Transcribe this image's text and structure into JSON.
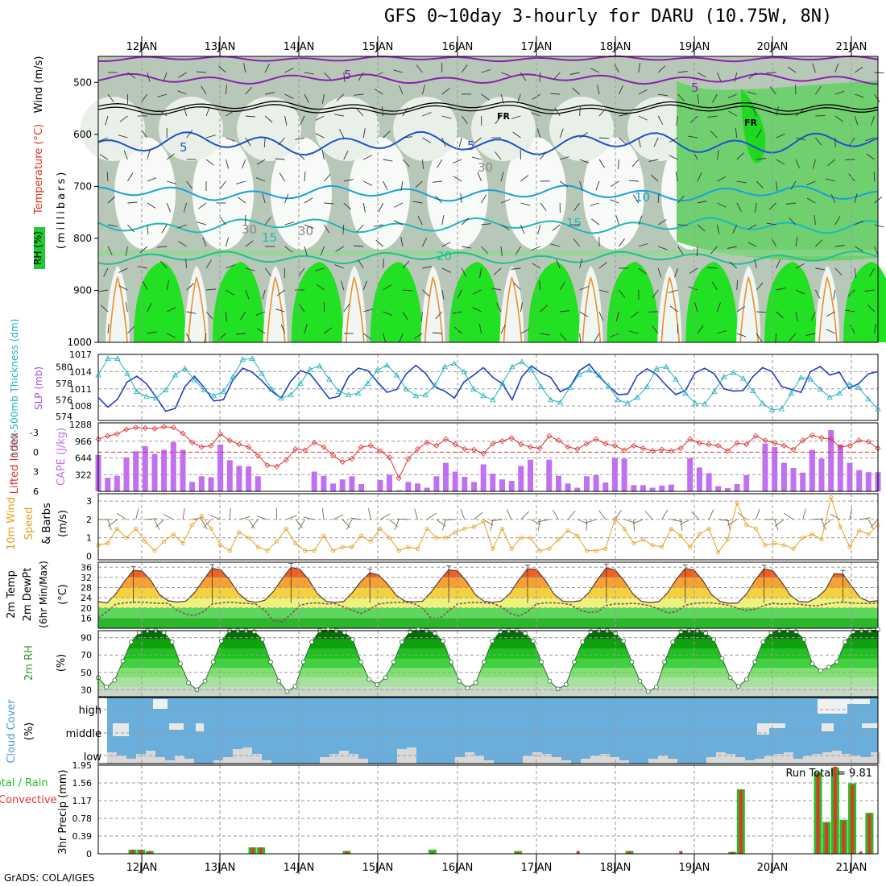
{
  "title": "GFS 0~10day 3-hourly for DARU (10.75W, 8N)",
  "footer": "GrADS: COLA/IGES",
  "dates": [
    "12JAN",
    "13JAN",
    "14JAN",
    "15JAN",
    "16JAN",
    "17JAN",
    "18JAN",
    "19JAN",
    "20JAN",
    "21JAN"
  ],
  "colors": {
    "rh": "#22c832",
    "temp": "#e03020",
    "wind": "#404040",
    "slp": "#2040c8",
    "thick": "#20b0c0",
    "cape": "#c070f0",
    "lifted": "#e03030",
    "wind10": "#e8a020",
    "rh2m": "#30a030",
    "cloud": "#6aaedc",
    "rain": "#20c020",
    "conv": "#e83030"
  },
  "chart_data": [
    {
      "panel": "upper_air",
      "type": "heatmap",
      "ylabel_rh": "RH (%)",
      "ylabel_temp": "Temperature (°C)",
      "ylabel_wind": "Wind (m/s)",
      "ylabel_units": "(millibars)",
      "y_ticks": [
        500,
        600,
        700,
        800,
        900,
        1000
      ],
      "ylim": [
        1000,
        450
      ],
      "contour_labels": [
        "5",
        "5",
        "FR",
        "FR",
        "5",
        "5",
        "10",
        "15",
        "15",
        "20",
        "30",
        "30",
        "30"
      ]
    },
    {
      "panel": "slp_thickness",
      "type": "line",
      "ylabel_left": "1000-500mb Thickness (dm)",
      "ylabel_right": "SLP (mb)",
      "slp_ticks": [
        1008,
        1011,
        1014,
        1017
      ],
      "thick_ticks": [
        574,
        576,
        578,
        580
      ],
      "series": [
        {
          "name": "SLP (mb)",
          "values": [
            1009.5,
            1007.8,
            1009.2,
            1012.2,
            1013.2,
            1011.9,
            1009.6,
            1007.1,
            1007.6,
            1011.4,
            1013.2,
            1011.2,
            1008.9,
            1009.1,
            1012.6,
            1014.6,
            1013.9,
            1012.4,
            1010.6,
            1009.4,
            1012.3,
            1014.2,
            1013.6,
            1011.5,
            1009.3,
            1009.7,
            1013.1,
            1014.6,
            1014.2,
            1012.2,
            1010.4,
            1010.9,
            1013.6,
            1015.1,
            1013.7,
            1011.3,
            1010.6,
            1009.4,
            1012.2,
            1013.4,
            1014.7,
            1013.0,
            1011.9,
            1009.1,
            1013.1,
            1015.0,
            1013.8,
            1013.0,
            1010.5,
            1011.3,
            1014.2,
            1015.3,
            1013.2,
            1011.5,
            1010.0,
            1010.1,
            1013.3,
            1014.5,
            1013.5,
            1011.6,
            1010.0,
            1010.7,
            1013.8,
            1014.6,
            1013.6,
            1011.0,
            1010.6,
            1010.7,
            1013.1,
            1014.7,
            1014.0,
            1011.4,
            1010.9,
            1010.4,
            1014.0,
            1014.9,
            1013.4,
            1013.9,
            1011.1,
            1011.9,
            1013.6,
            1014.0
          ]
        },
        {
          "name": "Thickness (dm)",
          "values": [
            579.0,
            581.0,
            581.0,
            579.2,
            577.0,
            576.4,
            576.2,
            577.2,
            579.0,
            579.8,
            578.4,
            577.2,
            576.5,
            577.0,
            578.8,
            580.9,
            581.0,
            579.2,
            577.3,
            576.2,
            576.6,
            578.0,
            579.7,
            580.1,
            578.5,
            577.0,
            576.6,
            576.8,
            578.0,
            579.6,
            580.2,
            579.0,
            577.3,
            576.5,
            576.6,
            577.8,
            580.0,
            580.4,
            579.4,
            577.3,
            576.5,
            576.0,
            578.0,
            580.0,
            580.6,
            579.6,
            577.6,
            576.0,
            575.7,
            577.5,
            579.1,
            579.6,
            579.0,
            577.7,
            576.0,
            575.6,
            576.3,
            577.6,
            579.8,
            580.0,
            578.5,
            576.8,
            575.6,
            575.5,
            577.0,
            578.8,
            579.3,
            578.6,
            577.1,
            575.6,
            574.8,
            574.9,
            576.8,
            578.7,
            578.5,
            577.3,
            576.3,
            576.8,
            577.9,
            577.5,
            576.1,
            574.9
          ]
        }
      ]
    },
    {
      "panel": "lifted_cape",
      "type": "bar",
      "ylabel_left": "Lifted Index",
      "ylabel_right": "CAPE (J/kg)",
      "cape_ticks": [
        322,
        644,
        966,
        1288
      ],
      "li_ticks": [
        -3,
        0,
        3,
        6
      ],
      "cape_values": [
        700,
        260,
        300,
        650,
        770,
        870,
        720,
        800,
        950,
        800,
        180,
        290,
        270,
        900,
        600,
        490,
        480,
        290,
        5,
        5,
        5,
        5,
        5,
        380,
        300,
        150,
        230,
        290,
        140,
        5,
        220,
        320,
        20,
        180,
        150,
        70,
        290,
        550,
        380,
        280,
        180,
        520,
        340,
        230,
        200,
        490,
        610,
        5,
        610,
        300,
        150,
        70,
        290,
        310,
        170,
        640,
        630,
        120,
        120,
        70,
        110,
        130,
        5,
        640,
        460,
        350,
        100,
        60,
        140,
        310,
        5,
        920,
        850,
        550,
        450,
        360,
        800,
        630,
        1180,
        900,
        550,
        410,
        370,
        370
      ],
      "li_values": [
        -2.0,
        -2.5,
        -2.8,
        -3.5,
        -3.8,
        -3.7,
        -3.6,
        -3.9,
        -3.8,
        -2.9,
        -1.5,
        -0.8,
        -1.0,
        -2.8,
        -1.8,
        -1.2,
        -0.8,
        0.5,
        2.0,
        2.2,
        1.2,
        -0.5,
        -0.3,
        -1.5,
        -0.8,
        0.5,
        1.5,
        1.0,
        -0.8,
        -1.0,
        -0.2,
        0.8,
        4.0,
        1.0,
        -0.5,
        -1.5,
        -1.0,
        -2.0,
        -1.2,
        -0.5,
        -0.4,
        0.2,
        -1.3,
        -1.7,
        -2.2,
        -1.2,
        -0.8,
        -0.6,
        -2.5,
        -1.8,
        -0.8,
        -0.5,
        -1.3,
        -2.0,
        -1.3,
        -1.0,
        -0.3,
        -1.0,
        -0.6,
        -0.2,
        -0.4,
        -0.2,
        -0.6,
        -2.0,
        -1.4,
        -1.2,
        -1.0,
        -0.2,
        -1.4,
        -1.2,
        -2.5,
        -1.8,
        -1.4,
        -1.0,
        -0.4,
        -1.8,
        -2.6,
        -2.2,
        -2.0,
        -0.8,
        -1.0,
        -1.8,
        -1.6,
        -0.6
      ]
    },
    {
      "panel": "wind10m",
      "type": "line",
      "ylabel_a": "10m Wind",
      "ylabel_b": "Speed",
      "ylabel_c": "& Barbs",
      "ylabel_units": "(m/s)",
      "y_ticks": [
        0,
        1,
        2,
        3
      ],
      "values": [
        0.6,
        0.7,
        1.5,
        1.0,
        1.5,
        0.8,
        0.3,
        0.8,
        1.2,
        0.7,
        1.7,
        2.2,
        1.5,
        0.6,
        0.3,
        1.3,
        1.0,
        0.5,
        0.3,
        0.8,
        1.5,
        0.7,
        0.3,
        0.3,
        1.1,
        0.3,
        0.5,
        0.5,
        1.1,
        0.8,
        1.5,
        1.0,
        0.3,
        0.5,
        0.4,
        1.5,
        1.0,
        1.0,
        1.3,
        1.5,
        1.6,
        1.9,
        0.4,
        1.5,
        0.4,
        1.0,
        1.0,
        0.3,
        0.4,
        0.9,
        1.4,
        1.1,
        0.3,
        0.3,
        0.4,
        2.0,
        1.5,
        0.7,
        0.9,
        0.6,
        0.5,
        1.5,
        1.1,
        0.5,
        1.2,
        1.5,
        0.2,
        0.9,
        2.9,
        1.7,
        1.5,
        0.6,
        0.7,
        0.6,
        0.4,
        1.0,
        1.2,
        0.9,
        3.2,
        1.6,
        0.5,
        1.4,
        1.2,
        1.7
      ]
    },
    {
      "panel": "temp2m",
      "type": "area",
      "ylabel_a": "2m Temp",
      "ylabel_b": "2m DewPt",
      "ylabel_c": "(6hr Min/Max)",
      "ylabel_units": "(°C)",
      "y_ticks": [
        16,
        20,
        24,
        28,
        32,
        36
      ],
      "ylim": [
        12,
        38
      ],
      "temp_values": [
        22.5,
        22.0,
        25.5,
        30.5,
        34.8,
        34.5,
        30.8,
        25.2,
        22.8,
        22.3,
        22.7,
        26.0,
        31.0,
        35.6,
        35.0,
        31.0,
        25.8,
        22.8,
        22.2,
        23.0,
        26.5,
        31.5,
        36.0,
        35.2,
        31.2,
        25.6,
        22.6,
        22.2,
        22.5,
        26.0,
        30.5,
        33.8,
        33.0,
        29.5,
        25.0,
        22.7,
        22.4,
        22.6,
        26.2,
        31.0,
        35.0,
        34.6,
        30.6,
        25.4,
        22.7,
        22.2,
        22.7,
        25.8,
        31.0,
        35.4,
        35.2,
        31.0,
        25.5,
        22.7,
        22.4,
        22.8,
        26.0,
        31.2,
        35.8,
        35.0,
        30.8,
        25.6,
        22.6,
        22.1,
        22.5,
        26.0,
        31.3,
        35.5,
        35.0,
        30.8,
        25.3,
        22.5,
        21.8,
        22.0,
        25.5,
        31.0,
        35.4,
        34.6,
        30.2,
        25.0,
        22.5,
        22.3,
        24.0,
        27.0,
        33.5,
        33.3,
        28.5,
        24.0,
        22.5,
        22.8
      ],
      "dew_values": [
        16.0,
        18.5,
        21.5,
        22.0,
        22.2,
        22.3,
        22.0,
        21.8,
        21.8,
        19.0,
        17.5,
        17.0,
        18.5,
        21.5,
        22.0,
        22.3,
        22.0,
        21.8,
        21.5,
        19.0,
        15.0,
        14.5,
        17.5,
        21.0,
        21.8,
        22.0,
        21.6,
        21.7,
        20.5,
        19.0,
        17.8,
        19.5,
        21.5,
        22.0,
        22.2,
        22.2,
        21.8,
        20.0,
        16.0,
        16.0,
        18.8,
        21.5,
        22.0,
        22.2,
        22.0,
        21.8,
        20.5,
        18.0,
        16.8,
        18.5,
        21.5,
        22.0,
        22.0,
        21.8,
        21.2,
        19.0,
        18.2,
        18.5,
        21.0,
        21.6,
        21.6,
        21.8,
        21.5,
        20.8,
        19.5,
        18.0,
        18.5,
        21.0,
        21.8,
        22.0,
        22.0,
        21.6,
        21.0,
        19.8,
        19.0,
        19.5,
        21.0,
        21.8,
        21.5,
        21.7,
        21.5,
        21.0,
        20.8,
        21.5,
        22.0,
        22.3,
        22.0,
        21.8,
        21.8,
        22.0
      ]
    },
    {
      "panel": "rh2m",
      "type": "area",
      "ylabel_a": "2m RH",
      "ylabel_units": "(%)",
      "y_ticks": [
        30,
        50,
        70,
        90
      ],
      "values": [
        44,
        33,
        41,
        63,
        85,
        96,
        98,
        98,
        96,
        85,
        60,
        38,
        30,
        40,
        62,
        86,
        98,
        98,
        98,
        97,
        88,
        62,
        40,
        28,
        34,
        62,
        85,
        98,
        99,
        98,
        96,
        88,
        62,
        42,
        36,
        44,
        62,
        85,
        97,
        99,
        98,
        95,
        86,
        62,
        40,
        32,
        38,
        62,
        86,
        97,
        98,
        98,
        95,
        86,
        62,
        40,
        31,
        36,
        62,
        85,
        97,
        98,
        98,
        95,
        86,
        62,
        40,
        28,
        33,
        62,
        85,
        97,
        98,
        98,
        95,
        88,
        66,
        44,
        34,
        42,
        62,
        85,
        96,
        98,
        98,
        97,
        88,
        60,
        52,
        56,
        62,
        85,
        97,
        98,
        98,
        99
      ]
    },
    {
      "panel": "cloud_cover",
      "type": "area",
      "ylabel_a": "Cloud Cover",
      "ylabel_units": "(%)",
      "level_labels": [
        "high",
        "middle",
        "low"
      ]
    },
    {
      "panel": "precip",
      "type": "bar",
      "ylabel_a": "Total / Rain",
      "ylabel_b": "Convective",
      "ylabel_c": "3hr Precip (mm)",
      "y_ticks": [
        0,
        0.39,
        0.78,
        1.17,
        1.56,
        1.95
      ],
      "run_total_label": "Run Total = 9.81",
      "ylim": [
        0,
        1.95
      ],
      "total_values": [
        0,
        0,
        0,
        0,
        0.09,
        0.09,
        0.06,
        0,
        0,
        0,
        0,
        0,
        0,
        0,
        0,
        0,
        0,
        0,
        0.14,
        0.14,
        0,
        0,
        0,
        0,
        0,
        0,
        0,
        0,
        0,
        0.06,
        0,
        0,
        0,
        0,
        0,
        0,
        0,
        0,
        0,
        0.09,
        0,
        0,
        0,
        0,
        0,
        0,
        0,
        0,
        0,
        0.06,
        0,
        0,
        0,
        0,
        0,
        0,
        0,
        0,
        0,
        0,
        0,
        0,
        0.06,
        0,
        0,
        0,
        0,
        0,
        0,
        0,
        0,
        0,
        0,
        0,
        0.04,
        1.42,
        0,
        0,
        0,
        0,
        0,
        0,
        0,
        0,
        1.8,
        0.7,
        1.9,
        0.75,
        1.55,
        0,
        0.9,
        0
      ],
      "conv_values": [
        0,
        0,
        0,
        0,
        0.09,
        0.09,
        0.06,
        0,
        0,
        0,
        0,
        0,
        0,
        0,
        0,
        0,
        0,
        0,
        0.14,
        0.14,
        0,
        0,
        0,
        0,
        0,
        0,
        0,
        0,
        0,
        0.06,
        0,
        0,
        0,
        0,
        0,
        0,
        0,
        0,
        0,
        0.03,
        0,
        0,
        0,
        0,
        0,
        0,
        0,
        0,
        0,
        0.03,
        0,
        0,
        0,
        0,
        0,
        0,
        0.06,
        0,
        0,
        0,
        0,
        0,
        0.06,
        0,
        0,
        0,
        0,
        0,
        0.06,
        0,
        0,
        0,
        0,
        0,
        0.04,
        1.4,
        0,
        0,
        0,
        0,
        0,
        0,
        0,
        0,
        1.76,
        0.68,
        1.92,
        0.72,
        1.52,
        0.05,
        0.88,
        0
      ]
    }
  ]
}
